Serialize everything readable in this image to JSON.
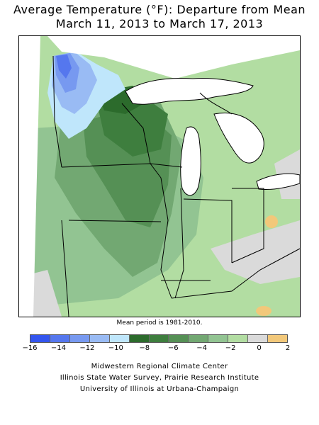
{
  "title": {
    "line1": "Average Temperature (°F): Departure from Mean",
    "line2": "March 11, 2013 to March 17, 2013"
  },
  "note": "Mean period is 1981-2010.",
  "legend": {
    "colors": [
      "#3355ee",
      "#5577ee",
      "#7799f0",
      "#99bbf4",
      "#bfe6fb",
      "#2c6b2c",
      "#3e7e3e",
      "#559055",
      "#72a872",
      "#92c492",
      "#b2dda2",
      "#dadada",
      "#f2c87a"
    ],
    "labels": [
      "−16",
      "−14",
      "−12",
      "−10",
      "−8",
      "−6",
      "−4",
      "−2",
      "0",
      "2"
    ]
  },
  "credits": {
    "line1": "Midwestern Regional Climate Center",
    "line2": "Illinois State Water Survey, Prairie Research Institute",
    "line3": "University of Illinois at Urbana-Champaign"
  }
}
